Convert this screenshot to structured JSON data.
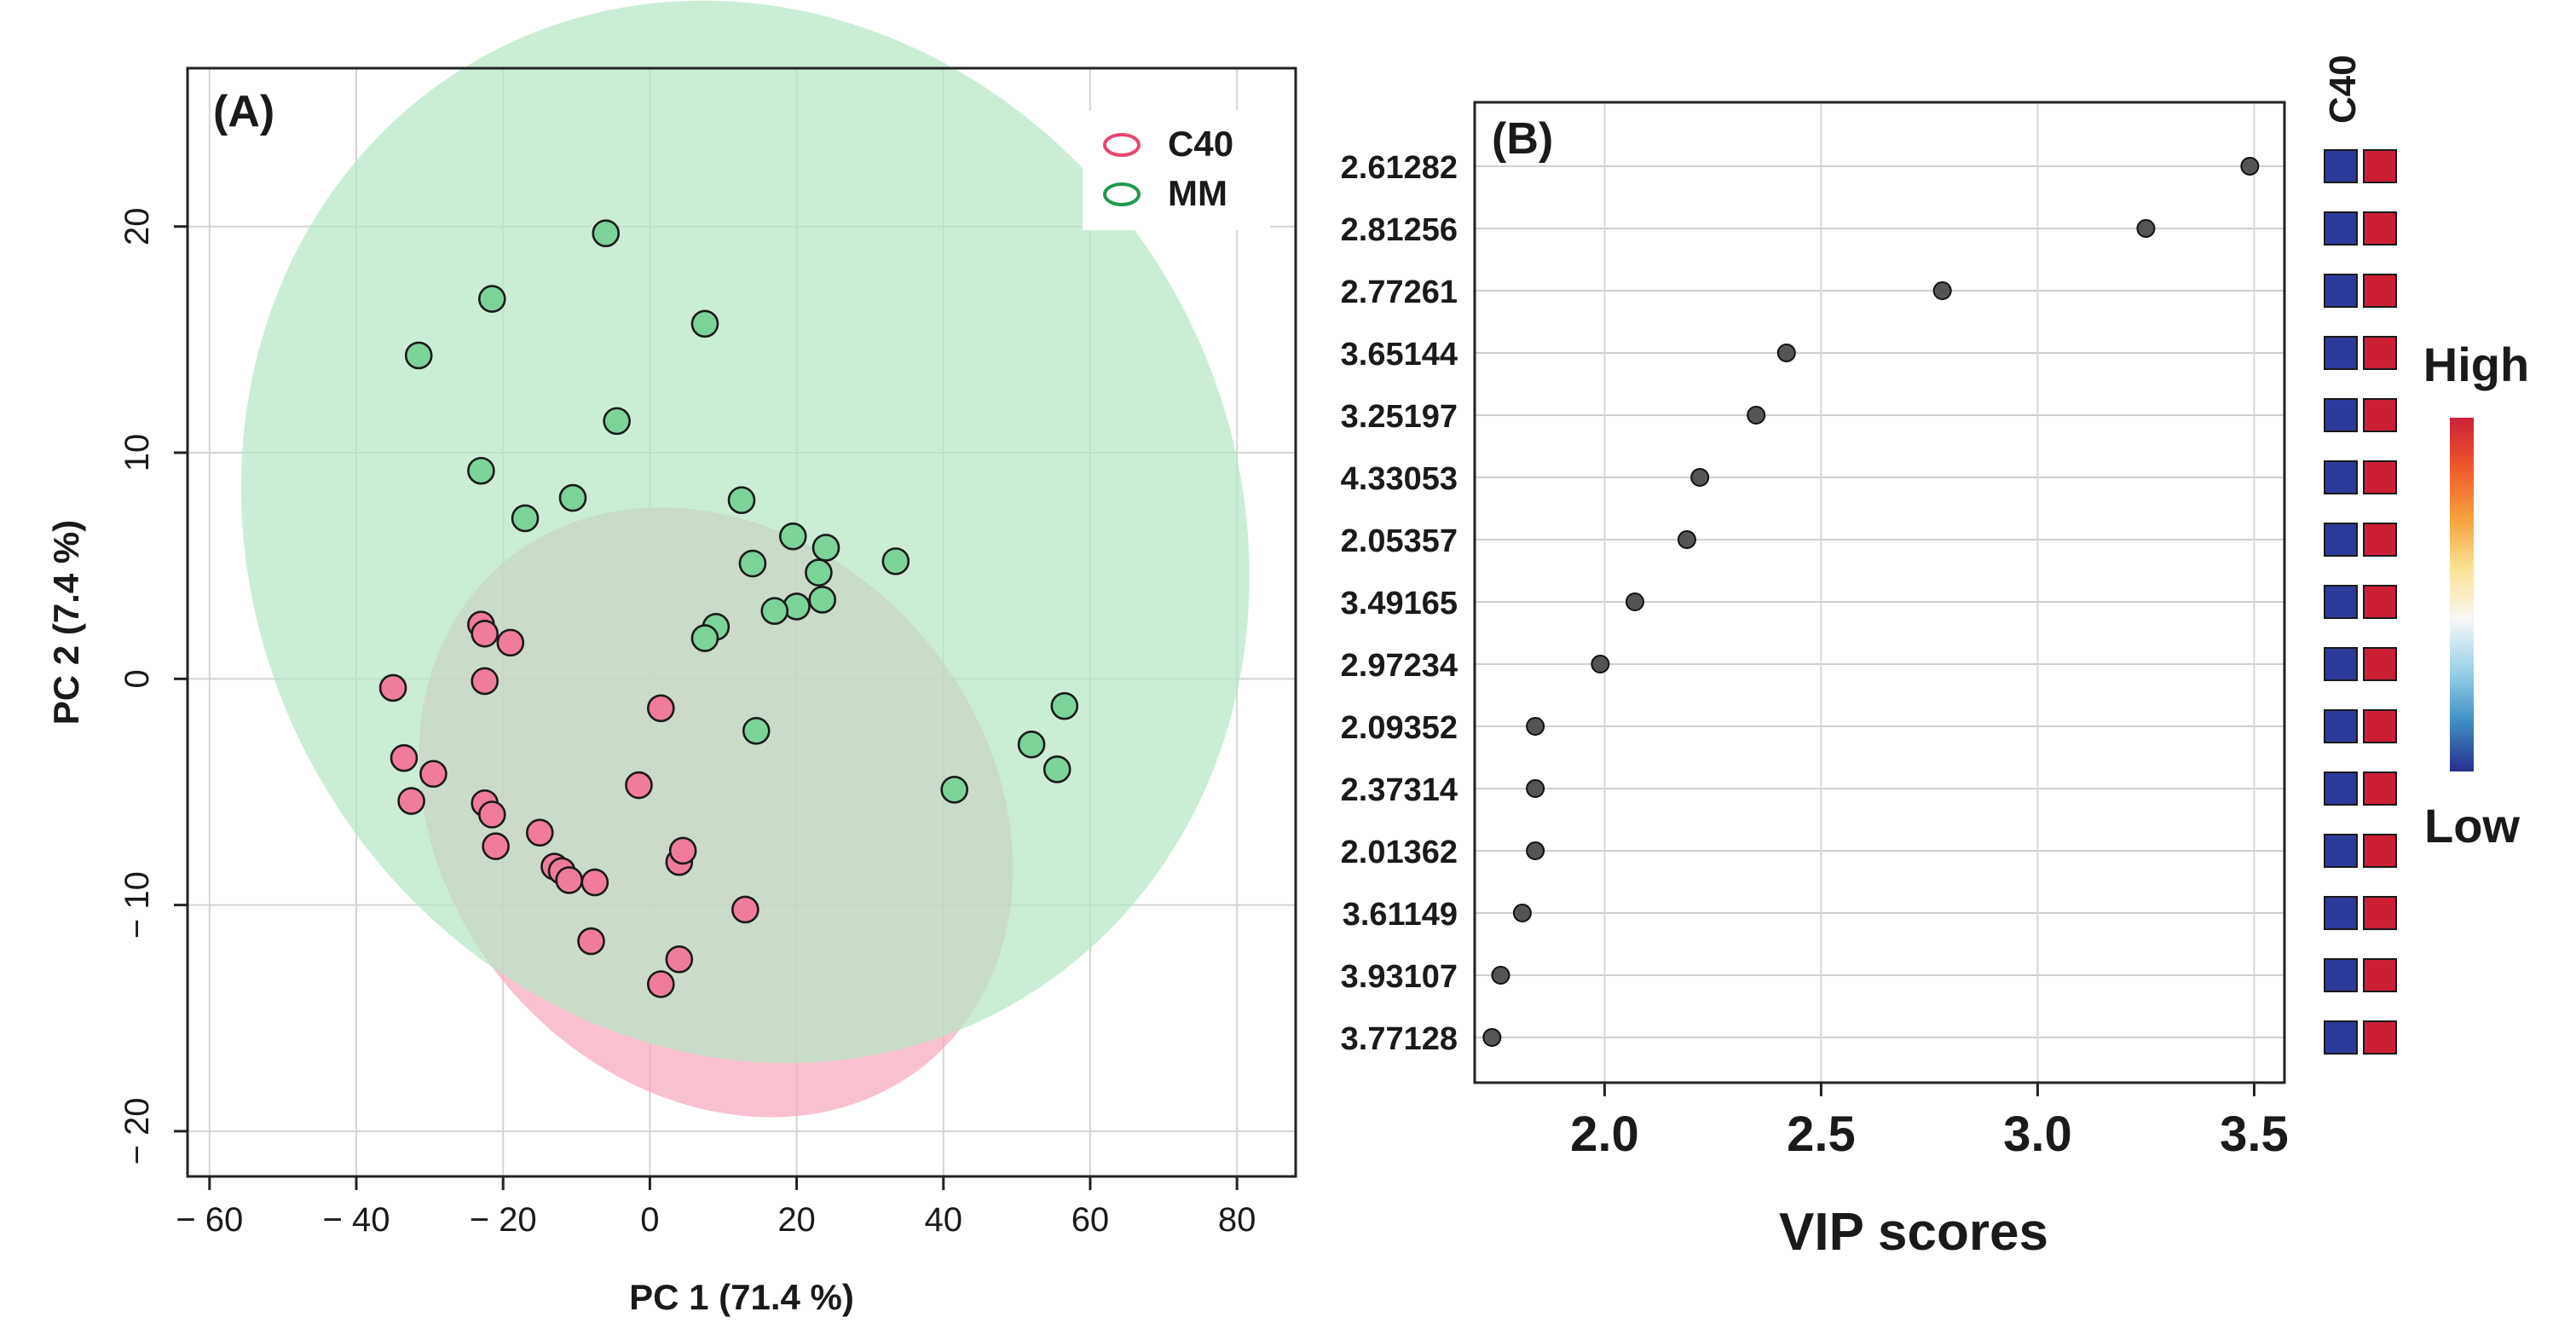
{
  "chart_data": [
    {
      "type": "scatter",
      "panel_label": "(A)",
      "xlabel": "PC 1 (71.4 %)",
      "ylabel": "PC 2 (7.4 %)",
      "xlim": [
        -63,
        88
      ],
      "ylim": [
        -22,
        27
      ],
      "xticks": [
        -60,
        -40,
        -20,
        0,
        20,
        40,
        60,
        80
      ],
      "yticks": [
        -20,
        -10,
        0,
        10,
        20
      ],
      "grid": true,
      "legend_position": "top-right",
      "series": [
        {
          "name": "C40",
          "marker_color": "#f07b9a",
          "legend_color": "#e8456e",
          "ellipse_color": "#f6a9bc",
          "ellipse": {
            "cx": 9,
            "cy": -5.9,
            "rx": 37,
            "ry": 14.5,
            "angle_deg": -41
          },
          "points": [
            [
              -35,
              -0.4
            ],
            [
              -33.5,
              -3.5
            ],
            [
              -32.5,
              -5.4
            ],
            [
              -29.5,
              -4.2
            ],
            [
              -23,
              2.4
            ],
            [
              -22.5,
              2
            ],
            [
              -22.5,
              -0.1
            ],
            [
              -22.5,
              -5.5
            ],
            [
              -21.5,
              -6
            ],
            [
              -21,
              -7.4
            ],
            [
              -19,
              1.6
            ],
            [
              -15,
              -6.8
            ],
            [
              -13,
              -8.3
            ],
            [
              -12,
              -8.5
            ],
            [
              -11,
              -8.9
            ],
            [
              -8,
              -11.6
            ],
            [
              -7.5,
              -9
            ],
            [
              -1.5,
              -4.7
            ],
            [
              1.5,
              -1.3
            ],
            [
              1.5,
              -13.5
            ],
            [
              4,
              -12.4
            ],
            [
              4,
              -8.1
            ],
            [
              4.5,
              -7.6
            ],
            [
              13,
              -10.2
            ]
          ]
        },
        {
          "name": "MM",
          "marker_color": "#7bd39a",
          "legend_color": "#1e9a50",
          "ellipse_color": "#b7e6c6",
          "ellipse": {
            "cx": 13,
            "cy": 6.5,
            "rx": 67,
            "ry": 24,
            "angle_deg": -29
          },
          "points": [
            [
              -6,
              19.7
            ],
            [
              -21.5,
              16.8
            ],
            [
              -31.5,
              14.3
            ],
            [
              7.5,
              15.7
            ],
            [
              -4.5,
              11.4
            ],
            [
              -23,
              9.2
            ],
            [
              -17,
              7.1
            ],
            [
              -10.5,
              8
            ],
            [
              12.5,
              7.9
            ],
            [
              19.5,
              6.3
            ],
            [
              24,
              5.8
            ],
            [
              14,
              5.1
            ],
            [
              23,
              4.7
            ],
            [
              33.5,
              5.2
            ],
            [
              23.5,
              3.5
            ],
            [
              20,
              3.2
            ],
            [
              17,
              3
            ],
            [
              9,
              2.3
            ],
            [
              7.5,
              1.8
            ],
            [
              14.5,
              -2.3
            ],
            [
              56.5,
              -1.2
            ],
            [
              52,
              -2.9
            ],
            [
              55.5,
              -4
            ],
            [
              41.5,
              -4.9
            ]
          ]
        }
      ]
    },
    {
      "type": "scatter",
      "panel_label": "(B)",
      "xlabel": "VIP scores",
      "xlim": [
        1.7,
        3.57
      ],
      "xticks": [
        "2.0",
        "2.5",
        "3.0",
        "3.5"
      ],
      "grid": true,
      "categories": [
        "2.61282",
        "2.81256",
        "2.77261",
        "3.65144",
        "3.25197",
        "4.33053",
        "2.05357",
        "3.49165",
        "2.97234",
        "2.09352",
        "2.37314",
        "2.01362",
        "3.61149",
        "3.93107",
        "3.77128"
      ],
      "values": [
        3.49,
        3.25,
        2.78,
        2.42,
        2.35,
        2.22,
        2.19,
        2.07,
        1.99,
        1.84,
        1.84,
        1.84,
        1.81,
        1.76,
        1.74
      ],
      "point_color": "#555555",
      "heatmap": {
        "column_label": "C40",
        "low_color": "#2d3a9a",
        "high_color": "#cc1f36",
        "cells": [
          [
            "low",
            "high"
          ],
          [
            "low",
            "high"
          ],
          [
            "low",
            "high"
          ],
          [
            "low",
            "high"
          ],
          [
            "low",
            "high"
          ],
          [
            "low",
            "high"
          ],
          [
            "low",
            "high"
          ],
          [
            "low",
            "high"
          ],
          [
            "low",
            "high"
          ],
          [
            "low",
            "high"
          ],
          [
            "low",
            "high"
          ],
          [
            "low",
            "high"
          ],
          [
            "low",
            "high"
          ],
          [
            "low",
            "high"
          ],
          [
            "low",
            "high"
          ]
        ]
      },
      "colorbar": {
        "high_label": "High",
        "low_label": "Low",
        "stops": [
          "#cc1f36",
          "#ee5a2c",
          "#f6a23e",
          "#fbe394",
          "#f7f7f7",
          "#9cd2ea",
          "#3f8fc4",
          "#262f8f"
        ]
      }
    }
  ]
}
